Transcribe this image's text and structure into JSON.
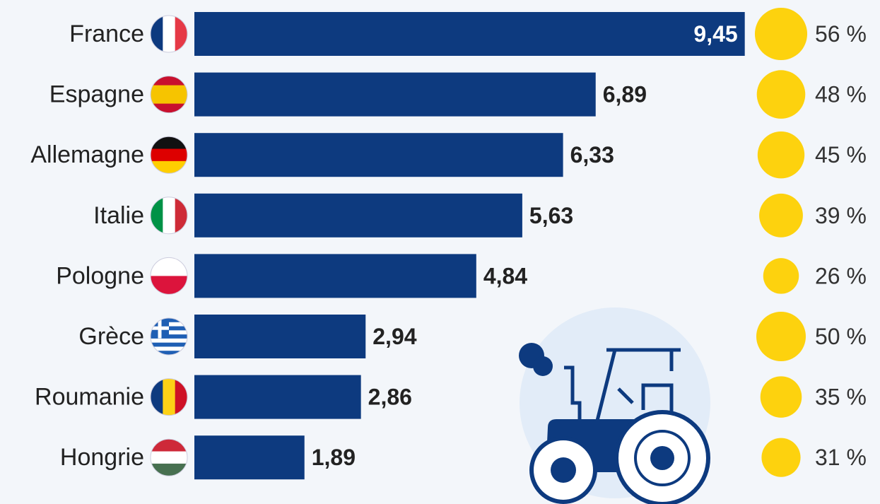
{
  "chart_data": {
    "type": "bar",
    "categories": [
      "France",
      "Espagne",
      "Allemagne",
      "Italie",
      "Pologne",
      "Grèce",
      "Roumanie",
      "Hongrie"
    ],
    "series": [
      {
        "type": "bar",
        "color": "#0d3a7f",
        "values": [
          9.45,
          6.89,
          6.33,
          5.63,
          4.84,
          2.94,
          2.86,
          1.89
        ],
        "value_labels": [
          "9,45",
          "6,89",
          "6,33",
          "5,63",
          "4,84",
          "2,94",
          "2,86",
          "1,89"
        ]
      },
      {
        "type": "bubble",
        "color": "#fdd20e",
        "values": [
          56,
          48,
          45,
          39,
          26,
          50,
          35,
          31
        ],
        "value_labels": [
          "56 %",
          "48 %",
          "45 %",
          "39 %",
          "26 %",
          "50 %",
          "35 %",
          "31 %"
        ]
      }
    ]
  }
}
